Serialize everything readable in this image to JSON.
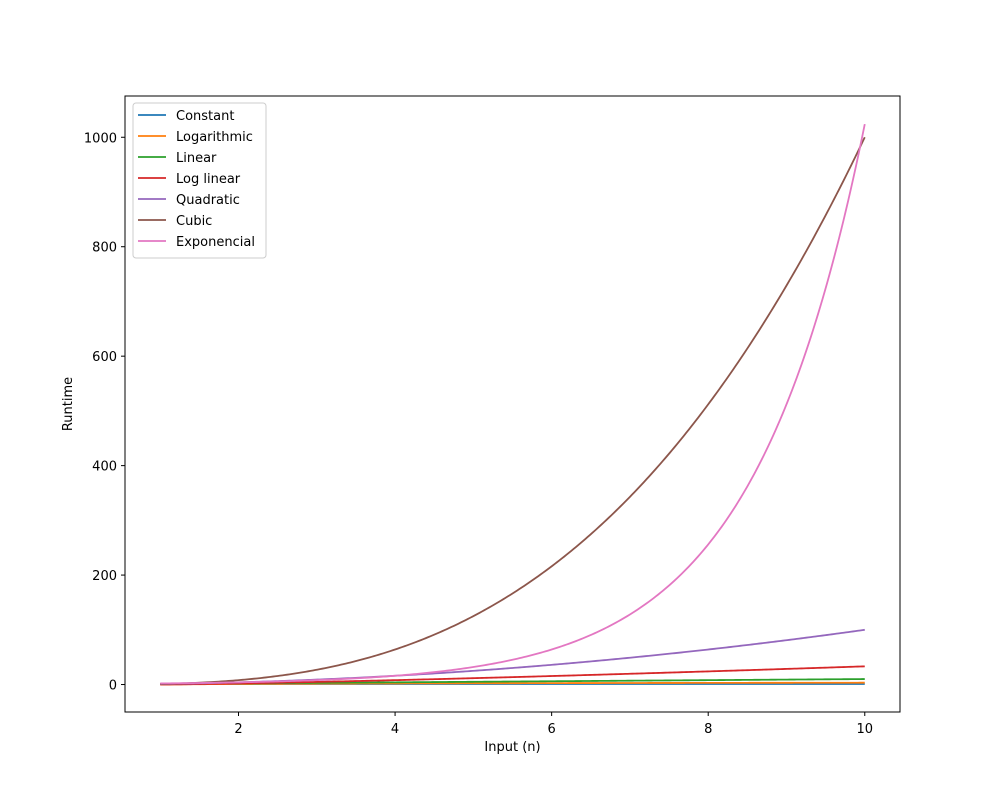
{
  "chart_data": {
    "type": "line",
    "title": "",
    "xlabel": "Input (n)",
    "ylabel": "Runtime",
    "xlim": [
      0.55,
      10.45
    ],
    "ylim": [
      -50.2,
      1075.4
    ],
    "x_range": [
      1,
      10
    ],
    "xticks": [
      2,
      4,
      6,
      8,
      10
    ],
    "yticks": [
      0,
      200,
      400,
      600,
      800,
      1000
    ],
    "grid": false,
    "legend_position": "top-left",
    "series": [
      {
        "name": "Constant",
        "color": "#1f77b4",
        "function": "constant",
        "values_at_1_and_10": [
          1,
          1
        ]
      },
      {
        "name": "Logarithmic",
        "color": "#ff7f0e",
        "function": "log2(n)",
        "values_at_1_and_10": [
          0,
          3.32
        ]
      },
      {
        "name": "Linear",
        "color": "#2ca02c",
        "function": "n",
        "values_at_1_and_10": [
          1,
          10
        ]
      },
      {
        "name": "Log linear",
        "color": "#d62728",
        "function": "n*log2(n)",
        "values_at_1_and_10": [
          0,
          33.2
        ]
      },
      {
        "name": "Quadratic",
        "color": "#9467bd",
        "function": "n^2",
        "values_at_1_and_10": [
          1,
          100
        ]
      },
      {
        "name": "Cubic",
        "color": "#8c564b",
        "function": "n^3",
        "values_at_1_and_10": [
          1,
          1000
        ]
      },
      {
        "name": "Exponencial",
        "color": "#e377c2",
        "function": "2^n",
        "values_at_1_and_10": [
          2,
          1024
        ]
      }
    ]
  }
}
